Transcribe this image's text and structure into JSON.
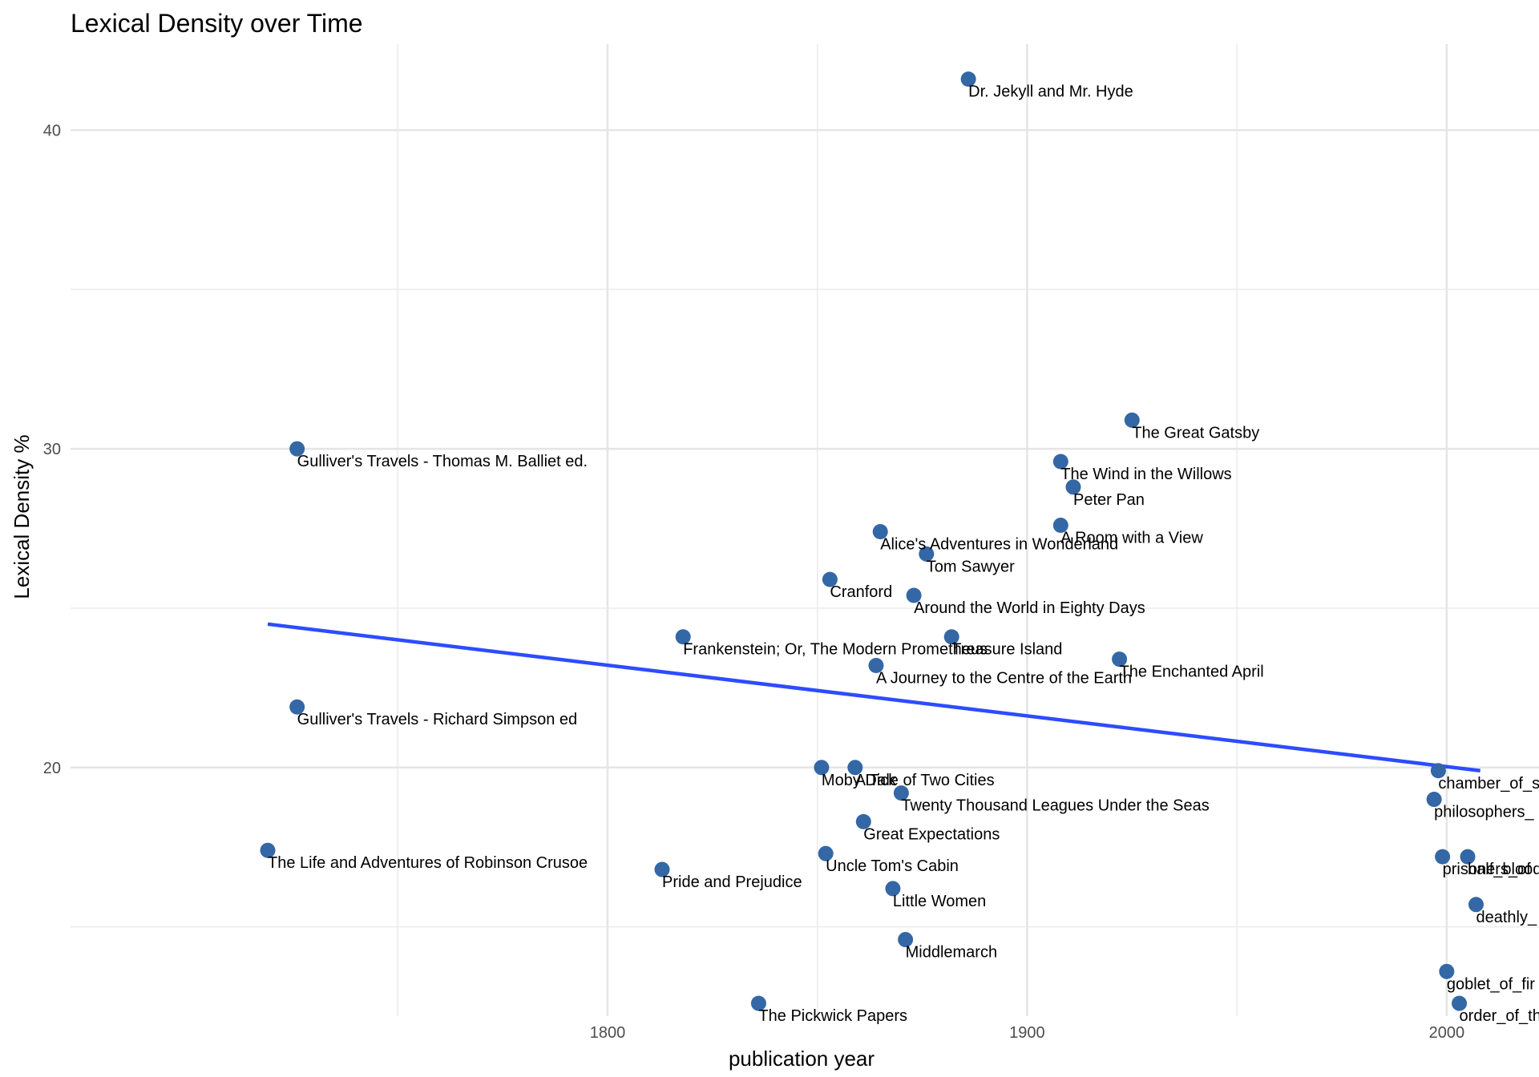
{
  "chart_data": {
    "type": "scatter",
    "title": "Lexical Density over Time",
    "xlabel": "publication year",
    "ylabel": "Lexical Density %",
    "xlim": [
      1672,
      2022
    ],
    "ylim": [
      12.2,
      42.7
    ],
    "x_ticks": [
      1800,
      1900,
      2000
    ],
    "x_tick_labels": [
      "1800",
      "1900",
      "2000"
    ],
    "x_minor_ticks": [
      1750,
      1850,
      1950
    ],
    "y_ticks": [
      20,
      30,
      40
    ],
    "y_tick_labels": [
      "20",
      "30",
      "40"
    ],
    "y_minor_ticks": [
      15,
      25,
      35
    ],
    "grid": true,
    "legend": "none",
    "point_color": "#3467a5",
    "trend_color": "#2d4cff",
    "trend_line": {
      "x": [
        1719,
        2008
      ],
      "y": [
        24.5,
        19.9
      ]
    },
    "points": [
      {
        "label": "Dr. Jekyll and Mr. Hyde",
        "x": 1886,
        "y": 41.6
      },
      {
        "label": "The Great Gatsby",
        "x": 1925,
        "y": 30.9
      },
      {
        "label": "Gulliver's Travels - Thomas M. Balliet ed.",
        "x": 1726,
        "y": 30.0
      },
      {
        "label": "The Wind in the Willows",
        "x": 1908,
        "y": 29.6
      },
      {
        "label": "Peter Pan",
        "x": 1911,
        "y": 28.8
      },
      {
        "label": "A Room with a View",
        "x": 1908,
        "y": 27.6
      },
      {
        "label": "Alice's Adventures in Wonderland",
        "x": 1865,
        "y": 27.4
      },
      {
        "label": "Tom Sawyer",
        "x": 1876,
        "y": 26.7
      },
      {
        "label": "Cranford",
        "x": 1853,
        "y": 25.9
      },
      {
        "label": "Around the World in Eighty Days",
        "x": 1873,
        "y": 25.4
      },
      {
        "label": "Frankenstein; Or, The Modern Prometheus",
        "x": 1818,
        "y": 24.1
      },
      {
        "label": "Treasure Island",
        "x": 1882,
        "y": 24.1
      },
      {
        "label": "The Enchanted April",
        "x": 1922,
        "y": 23.4
      },
      {
        "label": "A Journey to the Centre of the Earth",
        "x": 1864,
        "y": 23.2
      },
      {
        "label": "Gulliver's Travels - Richard Simpson ed",
        "x": 1726,
        "y": 21.9
      },
      {
        "label": "Moby Dick",
        "x": 1851,
        "y": 20.0
      },
      {
        "label": "A Tale of Two Cities",
        "x": 1859,
        "y": 20.0
      },
      {
        "label": "chamber_of_s",
        "x": 1998,
        "y": 19.9
      },
      {
        "label": "Twenty Thousand Leagues Under the Seas",
        "x": 1870,
        "y": 19.2
      },
      {
        "label": "philosophers_",
        "x": 1997,
        "y": 19.0
      },
      {
        "label": "Great Expectations",
        "x": 1861,
        "y": 18.3
      },
      {
        "label": "The Life and Adventures of Robinson Crusoe",
        "x": 1719,
        "y": 17.4
      },
      {
        "label": "Uncle Tom's Cabin",
        "x": 1852,
        "y": 17.3
      },
      {
        "label": "prisoners_of",
        "x": 1999,
        "y": 17.2
      },
      {
        "label": "half_blood",
        "x": 2005,
        "y": 17.2
      },
      {
        "label": "Pride and Prejudice",
        "x": 1813,
        "y": 16.8
      },
      {
        "label": "Little Women",
        "x": 1868,
        "y": 16.2
      },
      {
        "label": "deathly_",
        "x": 2007,
        "y": 15.7
      },
      {
        "label": "Middlemarch",
        "x": 1871,
        "y": 14.6
      },
      {
        "label": "goblet_of_fir",
        "x": 2000,
        "y": 13.6
      },
      {
        "label": "order_of_th",
        "x": 2003,
        "y": 12.6
      },
      {
        "label": "The Pickwick Papers",
        "x": 1836,
        "y": 12.6
      }
    ]
  }
}
